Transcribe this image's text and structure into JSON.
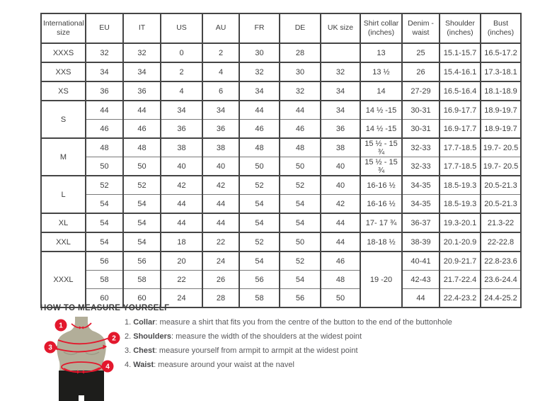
{
  "table": {
    "headers": [
      "International size",
      "EU",
      "IT",
      "US",
      "AU",
      "FR",
      "DE",
      "UK size",
      "Shirt collar (inches)",
      "Denim - waist",
      "Shoulder (inches)",
      "Bust (inches)"
    ],
    "groups": [
      {
        "size": "XXXS",
        "rows": [
          [
            "32",
            "32",
            "0",
            "2",
            "30",
            "28",
            "",
            "13",
            "25",
            "15.1-15.7",
            "16.5-17.2"
          ]
        ]
      },
      {
        "size": "XXS",
        "rows": [
          [
            "34",
            "34",
            "2",
            "4",
            "32",
            "30",
            "32",
            "13 ½",
            "26",
            "15.4-16.1",
            "17.3-18.1"
          ]
        ]
      },
      {
        "size": "XS",
        "rows": [
          [
            "36",
            "36",
            "4",
            "6",
            "34",
            "32",
            "34",
            "14",
            "27-29",
            "16.5-16.4",
            "18.1-18.9"
          ]
        ]
      },
      {
        "size": "S",
        "rows": [
          [
            "44",
            "44",
            "34",
            "34",
            "44",
            "44",
            "34",
            "14 ½ -15",
            "30-31",
            "16.9-17.7",
            "18.9-19.7"
          ],
          [
            "46",
            "46",
            "36",
            "36",
            "46",
            "46",
            "36",
            "14 ½ -15",
            "30-31",
            "16.9-17.7",
            "18.9-19.7"
          ]
        ]
      },
      {
        "size": "M",
        "rows": [
          [
            "48",
            "48",
            "38",
            "38",
            "48",
            "48",
            "38",
            "15 ½ - 15 ¾",
            "32-33",
            "17.7-18.5",
            "19.7- 20.5"
          ],
          [
            "50",
            "50",
            "40",
            "40",
            "50",
            "50",
            "40",
            "15 ½ - 15 ¾",
            "32-33",
            "17.7-18.5",
            "19.7- 20.5"
          ]
        ]
      },
      {
        "size": "L",
        "rows": [
          [
            "52",
            "52",
            "42",
            "42",
            "52",
            "52",
            "40",
            "16-16 ½",
            "34-35",
            "18.5-19.3",
            "20.5-21.3"
          ],
          [
            "54",
            "54",
            "44",
            "44",
            "54",
            "54",
            "42",
            "16-16 ½",
            "34-35",
            "18.5-19.3",
            "20.5-21.3"
          ]
        ]
      },
      {
        "size": "XL",
        "rows": [
          [
            "54",
            "54",
            "44",
            "44",
            "54",
            "54",
            "44",
            "17- 17 ¾",
            "36-37",
            "19.3-20.1",
            "21.3-22"
          ]
        ]
      },
      {
        "size": "XXL",
        "rows": [
          [
            "54",
            "54",
            "18",
            "22",
            "52",
            "50",
            "44",
            "18-18 ½",
            "38-39",
            "20.1-20.9",
            "22-22.8"
          ]
        ]
      },
      {
        "size": "XXXL",
        "collar_merged": "19 -20",
        "rows": [
          [
            "56",
            "56",
            "20",
            "24",
            "54",
            "52",
            "46",
            "40-41",
            "20.9-21.7",
            "22.8-23.6"
          ],
          [
            "58",
            "58",
            "22",
            "26",
            "56",
            "54",
            "48",
            "42-43",
            "21.7-22.4",
            "23.6-24.4"
          ],
          [
            "60",
            "60",
            "24",
            "28",
            "58",
            "56",
            "50",
            "44",
            "22.4-23.2",
            "24.4-25.2"
          ]
        ]
      }
    ]
  },
  "measure": {
    "heading": "HOW TO MEASURE YOURSELF",
    "markers": [
      "1",
      "2",
      "3",
      "4"
    ],
    "items": [
      {
        "num": "1.",
        "label": "Collar",
        "text": ": measure a shirt that fits you from the centre of the button to the end of the buttonhole"
      },
      {
        "num": "2.",
        "label": "Shoulders",
        "text": ": measure the width of the shoulders at the widest point"
      },
      {
        "num": "3.",
        "label": "Chest",
        "text": ": measure yourself from armpit to armpit at the widest point"
      },
      {
        "num": "4.",
        "label": "Waist",
        "text": ": measure around your waist at the navel"
      }
    ]
  },
  "colors": {
    "accent_red": "#e3182d",
    "torso_tan": "#b2ae99",
    "shorts_black": "#1d1d1b",
    "border_dark": "#454545",
    "text_dark": "#3e3e3e"
  }
}
